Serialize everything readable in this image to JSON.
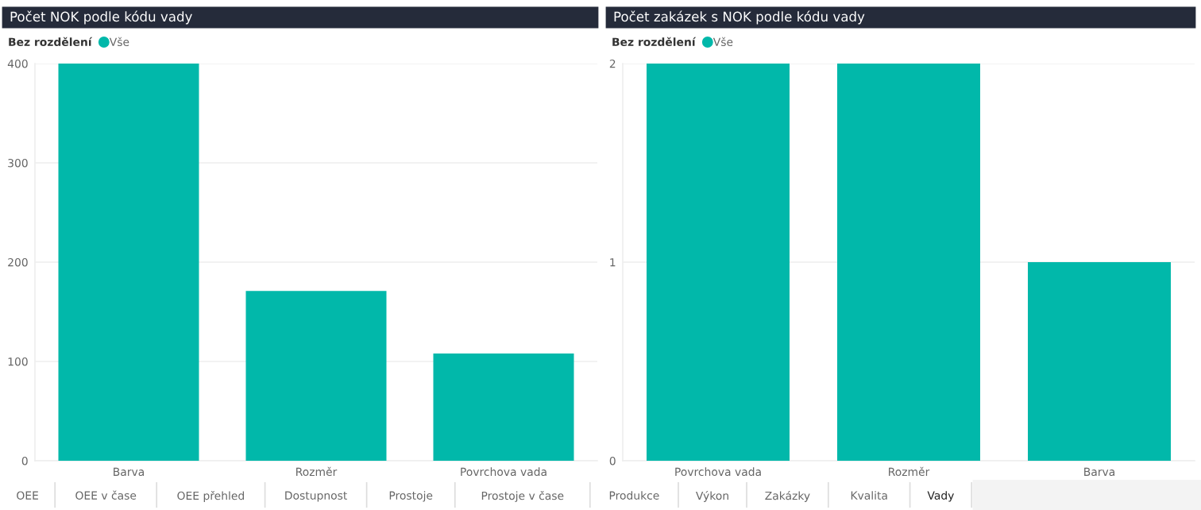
{
  "chart_data": [
    {
      "type": "bar",
      "title": "Počet NOK podle kódu vady",
      "legend_title": "Bez rozdělení",
      "categories": [
        "Barva",
        "Rozměr",
        "Povrchova vada"
      ],
      "series": [
        {
          "name": "Vše",
          "color": "#01b8aa",
          "values": [
            400,
            171,
            108
          ]
        }
      ],
      "ylim": [
        0,
        400
      ],
      "yticks": [
        0,
        100,
        200,
        300,
        400
      ],
      "grid": "y",
      "legend": "top left"
    },
    {
      "type": "bar",
      "title": "Počet zakázek s NOK podle kódu vady",
      "legend_title": "Bez rozdělení",
      "categories": [
        "Povrchova vada",
        "Rozměr",
        "Barva"
      ],
      "series": [
        {
          "name": "Vše",
          "color": "#01b8aa",
          "values": [
            2,
            2,
            1
          ]
        }
      ],
      "ylim": [
        0,
        2
      ],
      "yticks": [
        0,
        1,
        2
      ],
      "grid": "y",
      "legend": "top left"
    },
    {
      "type": "other",
      "annotations": [
        "OEE",
        "OEE v čase",
        "OEE přehled",
        "Dostupnost",
        "Prostoje",
        "Prostoje v čase",
        "Produkce",
        "Výkon",
        "Zakázky",
        "Kvalita",
        "Vady"
      ]
    }
  ]
}
